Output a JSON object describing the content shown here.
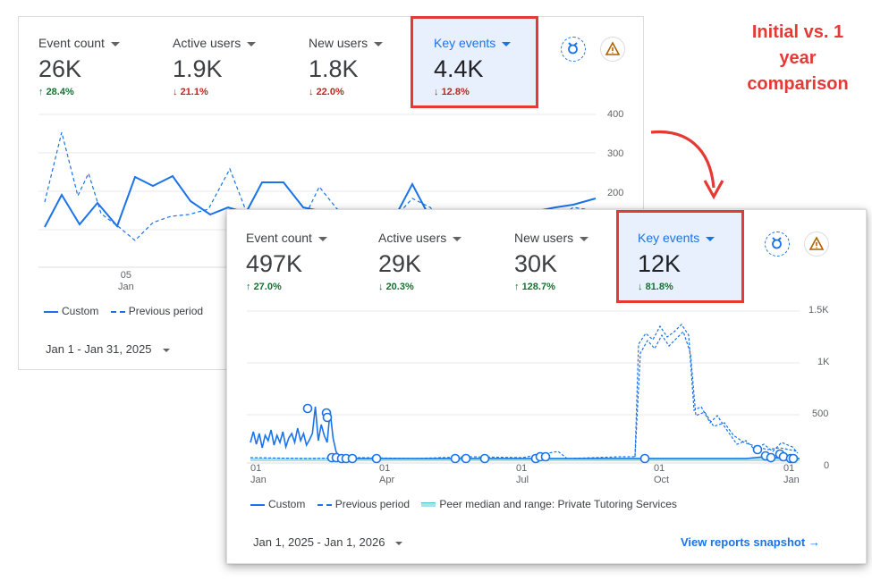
{
  "annotation": {
    "line1": "Initial vs. 1",
    "line2": "year",
    "line3": "comparison",
    "color": "#e53935"
  },
  "panel_initial": {
    "metrics": [
      {
        "label": "Event count",
        "value": "26K",
        "delta": "28.4%",
        "direction": "up"
      },
      {
        "label": "Active users",
        "value": "1.9K",
        "delta": "21.1%",
        "direction": "down"
      },
      {
        "label": "New users",
        "value": "1.8K",
        "delta": "22.0%",
        "direction": "down"
      },
      {
        "label": "Key events",
        "value": "4.4K",
        "delta": "12.8%",
        "direction": "down"
      }
    ],
    "y_ticks": [
      "400",
      "300",
      "200"
    ],
    "x_tick_day": "05",
    "x_tick_month": "Jan",
    "legend_custom": "Custom",
    "legend_previous": "Previous period",
    "date_range": "Jan 1 - Jan 31, 2025",
    "icons": [
      "insights-badge-icon",
      "warning-icon"
    ]
  },
  "panel_year": {
    "metrics": [
      {
        "label": "Event count",
        "value": "497K",
        "delta": "27.0%",
        "direction": "up"
      },
      {
        "label": "Active users",
        "value": "29K",
        "delta": "20.3%",
        "direction": "down"
      },
      {
        "label": "New users",
        "value": "30K",
        "delta": "128.7%",
        "direction": "up"
      },
      {
        "label": "Key events",
        "value": "12K",
        "delta": "81.8%",
        "direction": "down"
      }
    ],
    "y_ticks": [
      "1.5K",
      "1K",
      "500",
      "0"
    ],
    "x_ticks": [
      {
        "day": "01",
        "month": "Jan"
      },
      {
        "day": "01",
        "month": "Apr"
      },
      {
        "day": "01",
        "month": "Jul"
      },
      {
        "day": "01",
        "month": "Oct"
      },
      {
        "day": "01",
        "month": "Jan"
      }
    ],
    "legend_custom": "Custom",
    "legend_previous": "Previous period",
    "legend_peer": "Peer median and range: Private Tutoring Services",
    "date_range": "Jan 1, 2025 - Jan 1, 2026",
    "link": "View reports snapshot",
    "arrow": "→"
  },
  "colors": {
    "series": "#1a73e8",
    "peer": "#4fc3c8",
    "up": "#137333",
    "down": "#c5221f",
    "highlight": "#e53935"
  }
}
